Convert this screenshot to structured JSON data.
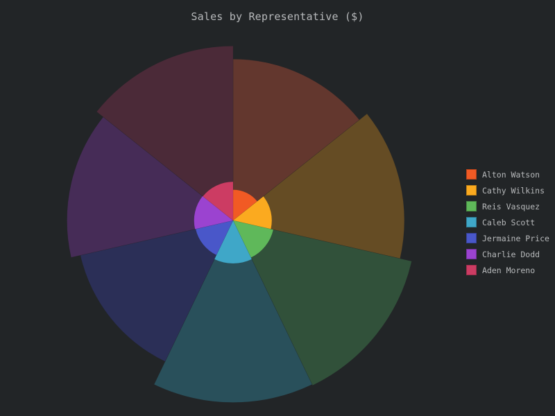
{
  "chart_data": {
    "type": "pie",
    "title": "Sales by Representative ($)",
    "legend_position": "right",
    "categories": [
      "Alton Watson",
      "Cathy Wilkins",
      "Reis Vasquez",
      "Caleb Scott",
      "Jermaine Price",
      "Charlie Dodd",
      "Aden Moreno"
    ],
    "series": [
      {
        "values": [
          13.6,
          15.3,
          17.5,
          17.3,
          12.8,
          14.4,
          15.9
        ]
      },
      {
        "values": [
          3.8,
          6.0,
          6.8,
          7.4,
          5.9,
          6.1,
          6.0
        ]
      }
    ],
    "colors": [
      "#f15a24",
      "#fbaa1f",
      "#5fb85a",
      "#3fa7c8",
      "#4957c9",
      "#9b43d0",
      "#cc3c63"
    ],
    "outer_colors": [
      "#63372e",
      "#654c24",
      "#31513a",
      "#29505b",
      "#2b2f57",
      "#462c57",
      "#4b2a38"
    ]
  }
}
